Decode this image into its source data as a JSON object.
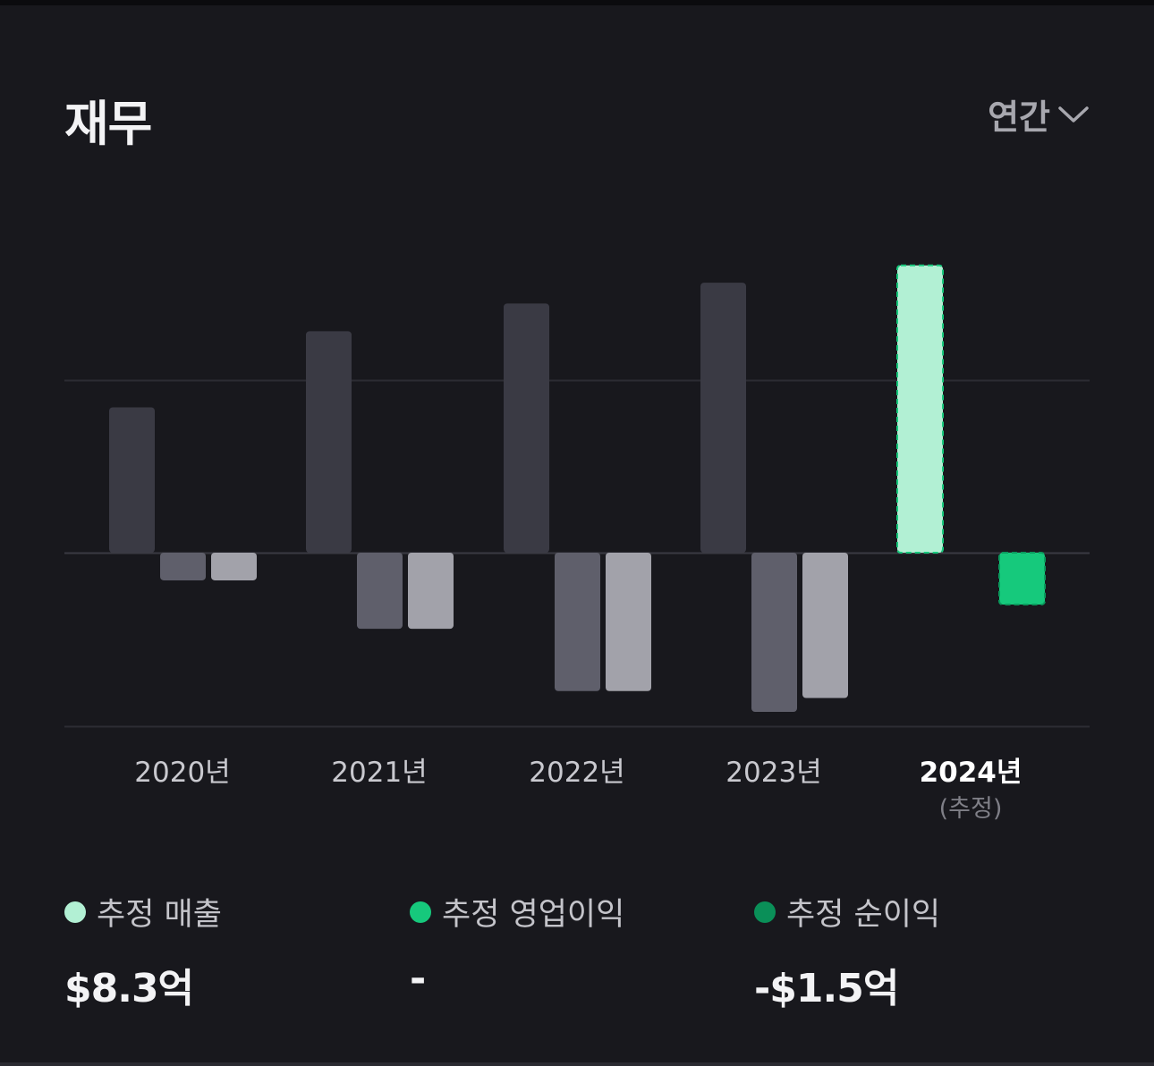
{
  "header": {
    "title": "재무",
    "period_label": "연간"
  },
  "chart_data": {
    "type": "bar",
    "categories": [
      "2020년",
      "2021년",
      "2022년",
      "2023년",
      "2024년"
    ],
    "category_notes": [
      "",
      "",
      "",
      "",
      "(추정)"
    ],
    "highlight_index": 4,
    "series": [
      {
        "key": "revenue",
        "values": [
          4.2,
          6.4,
          7.2,
          7.8,
          8.3
        ],
        "colors": [
          "#3a3a44",
          "#3a3a44",
          "#3a3a44",
          "#3a3a44",
          "#b2f0d4"
        ]
      },
      {
        "key": "operating_income",
        "values": [
          -0.8,
          -2.2,
          -4.0,
          -4.6,
          null
        ],
        "colors": [
          "#5f5f6b",
          "#5f5f6b",
          "#5f5f6b",
          "#5f5f6b",
          "#16c97c"
        ]
      },
      {
        "key": "net_income",
        "values": [
          -0.8,
          -2.2,
          -4.0,
          -4.2,
          -1.5
        ],
        "colors": [
          "#a2a2aa",
          "#a2a2aa",
          "#a2a2aa",
          "#a2a2aa",
          "#16c97c"
        ]
      }
    ],
    "ylim": [
      -5.0,
      8.3
    ],
    "gridlines": [
      5.0,
      0,
      -5.0
    ],
    "grid": true
  },
  "legend": [
    {
      "label": "추정 매출",
      "value": "$8.3억",
      "color": "#b2f0d4"
    },
    {
      "label": "추정 영업이익",
      "value": "-",
      "color": "#16c97c"
    },
    {
      "label": "추정 순이익",
      "value": "-$1.5억",
      "color": "#0a8f58"
    }
  ]
}
